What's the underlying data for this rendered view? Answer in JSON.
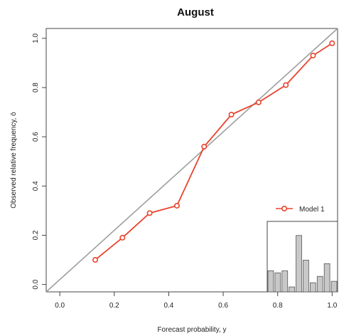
{
  "chart_data": {
    "type": "line",
    "title": "August",
    "xlabel": "Forecast probability, y",
    "ylabel": "Observed relative frequency, ō",
    "xlim": [
      -0.05,
      1.02
    ],
    "ylim": [
      -0.03,
      1.04
    ],
    "x_ticks": [
      "0.0",
      "0.2",
      "0.4",
      "0.6",
      "0.8",
      "1.0"
    ],
    "y_ticks": [
      "0.0",
      "0.2",
      "0.4",
      "0.6",
      "0.8",
      "1.0"
    ],
    "x_tick_values": [
      0,
      0.2,
      0.4,
      0.6,
      0.8,
      1.0
    ],
    "y_tick_values": [
      0,
      0.2,
      0.4,
      0.6,
      0.8,
      1.0
    ],
    "grid": false,
    "legend_position": "bottom-right",
    "series": [
      {
        "name": "Model 1",
        "color": "#e8442e",
        "x": [
          0.13,
          0.23,
          0.33,
          0.43,
          0.53,
          0.63,
          0.73,
          0.83,
          0.93,
          1.0
        ],
        "y": [
          0.1,
          0.19,
          0.29,
          0.32,
          0.56,
          0.69,
          0.74,
          0.81,
          0.93,
          0.98
        ]
      }
    ],
    "reference_line": {
      "from": [
        -0.05,
        -0.03
      ],
      "to": [
        1.02,
        1.04
      ],
      "color": "#9e9e9e"
    },
    "inset_histogram": {
      "color": "#c8c8c8",
      "relative_frequencies": [
        0.3,
        0.27,
        0.3,
        0.07,
        0.8,
        0.45,
        0.13,
        0.22,
        0.4,
        0.15
      ]
    }
  }
}
